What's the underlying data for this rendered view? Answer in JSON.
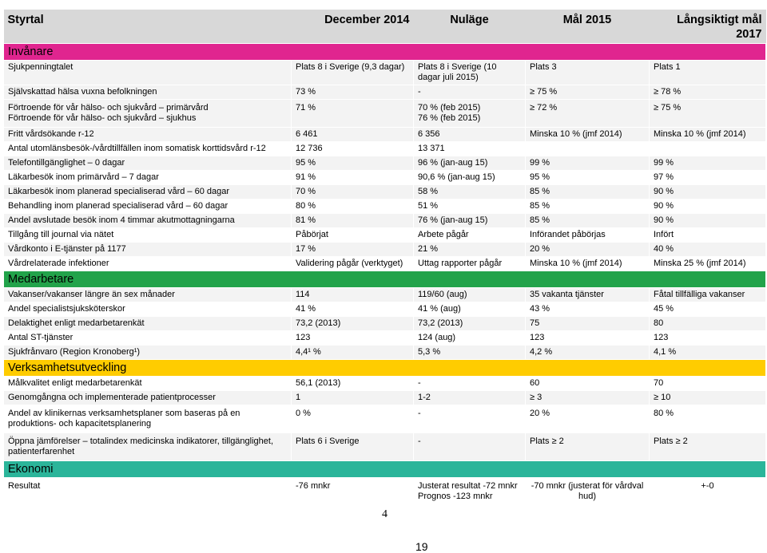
{
  "header": {
    "title": "Styrtal",
    "col1": "December 2014",
    "col2": "Nuläge",
    "col3": "Mål 2015",
    "col4": "Långsiktigt mål 2017"
  },
  "sections": {
    "invanare": "Invånare",
    "medarbetare": "Medarbetare",
    "verksamhet": "Verksamhetsutveckling",
    "ekonomi": "Ekonomi"
  },
  "rows": [
    {
      "label": "Sjukpenningtalet",
      "dec": "Plats 8 i Sverige (9,3 dagar)",
      "nu": "Plats 8 i Sverige (10 dagar juli 2015)",
      "mal15": "Plats 3",
      "mal17": "Plats 1"
    },
    {
      "label": "Självskattad hälsa vuxna befolkningen",
      "dec": "73 %",
      "nu": "-",
      "mal15": "≥ 75 %",
      "mal17": "≥ 78 %"
    },
    {
      "label": "Förtroende för vår hälso- och sjukvård – primärvård\nFörtroende för vår hälso- och sjukvård – sjukhus",
      "dec": "71 %",
      "nu": "70 % (feb 2015)\n76 % (feb 2015)",
      "mal15": "≥ 72 %",
      "mal17": "≥ 75 %"
    },
    {
      "label": "Fritt vårdsökande r-12",
      "dec": "6 461",
      "nu": "6 356",
      "mal15": "Minska 10 % (jmf 2014)",
      "mal17": "Minska 10 % (jmf 2014)"
    },
    {
      "label": "Antal utomlänsbesök-/vårdtillfällen inom somatisk korttidsvård r-12",
      "dec": "12 736",
      "nu": "13 371",
      "mal15": "",
      "mal17": ""
    },
    {
      "label": "Telefontillgänglighet – 0 dagar",
      "dec": "95 %",
      "nu": "96 % (jan-aug 15)",
      "mal15": "99 %",
      "mal17": "99 %"
    },
    {
      "label": "Läkarbesök inom primärvård – 7 dagar",
      "dec": "91 %",
      "nu": "90,6 % (jan-aug 15)",
      "mal15": "95 %",
      "mal17": "97 %"
    },
    {
      "label": "Läkarbesök inom planerad specialiserad vård – 60 dagar",
      "dec": "70 %",
      "nu": "58 %",
      "mal15": "85 %",
      "mal17": "90 %"
    },
    {
      "label": "Behandling inom planerad specialiserad vård – 60 dagar",
      "dec": "80 %",
      "nu": "51 %",
      "mal15": "85 %",
      "mal17": "90 %"
    },
    {
      "label": "Andel avslutade besök inom 4 timmar akutmottagningarna",
      "dec": "81 %",
      "nu": "76 % (jan-aug 15)",
      "mal15": "85 %",
      "mal17": "90 %"
    },
    {
      "label": "Tillgång till journal via nätet",
      "dec": "Påbörjat",
      "nu": "Arbete pågår",
      "mal15": "Införandet påbörjas",
      "mal17": "Infört"
    },
    {
      "label": "Vårdkonto i E-tjänster på 1177",
      "dec": "17 %",
      "nu": "21 %",
      "mal15": "20 %",
      "mal17": "40 %"
    },
    {
      "label": "Vårdrelaterade infektioner",
      "dec": "Validering pågår (verktyget)",
      "nu": "Uttag rapporter pågår",
      "mal15": "Minska 10 % (jmf 2014)",
      "mal17": "Minska 25 % (jmf 2014)"
    },
    {
      "label": "Vakanser/vakanser längre än sex månader",
      "dec": "114",
      "nu": "119/60 (aug)",
      "mal15": "35 vakanta tjänster",
      "mal17": "Fåtal tillfälliga vakanser"
    },
    {
      "label": "Andel specialistsjuksköterskor",
      "dec": "41 %",
      "nu": "41 % (aug)",
      "mal15": "43 %",
      "mal17": "45 %"
    },
    {
      "label": "Delaktighet enligt medarbetarenkät",
      "dec": "73,2 (2013)",
      "nu": "73,2 (2013)",
      "mal15": "75",
      "mal17": "80"
    },
    {
      "label": "Antal ST-tjänster",
      "dec": "123",
      "nu": "124 (aug)",
      "mal15": "123",
      "mal17": "123"
    },
    {
      "label": "Sjukfrånvaro (Region Kronoberg¹)",
      "dec": "4,4¹ %",
      "nu": "5,3 %",
      "mal15": "4,2 %",
      "mal17": "4,1 %"
    },
    {
      "label": "Målkvalitet enligt medarbetarenkät",
      "dec": "56,1 (2013)",
      "nu": "-",
      "mal15": "60",
      "mal17": "70"
    },
    {
      "label": "Genomgångna och implementerade patientprocesser",
      "dec": "1",
      "nu": "1-2",
      "mal15": "≥ 3",
      "mal17": "≥ 10"
    },
    {
      "label": "Andel av klinikernas verksamhetsplaner som baseras på en produktions- och kapacitetsplanering",
      "dec": "0 %",
      "nu": "-",
      "mal15": "20 %",
      "mal17": "80 %"
    },
    {
      "label": "Öppna jämförelser – totalindex medicinska indikatorer, tillgänglighet, patienterfarenhet",
      "dec": "Plats 6 i Sverige",
      "nu": "-",
      "mal15": "Plats ≥ 2",
      "mal17": "Plats ≥ 2"
    },
    {
      "label": "Resultat",
      "dec": "-76 mnkr",
      "nu": "Justerat resultat -72 mnkr\nPrognos -123 mnkr",
      "mal15": "-70 mnkr (justerat för vårdval hud)",
      "mal17": "+-0"
    }
  ],
  "page_numbers": {
    "small": "4",
    "large": "19"
  },
  "colors": {
    "invanare": "#e0258f",
    "medarbetare": "#22a34a",
    "verksamhet": "#ffcc00",
    "ekonomi": "#2bb59a",
    "header": "#d8d8d8"
  }
}
